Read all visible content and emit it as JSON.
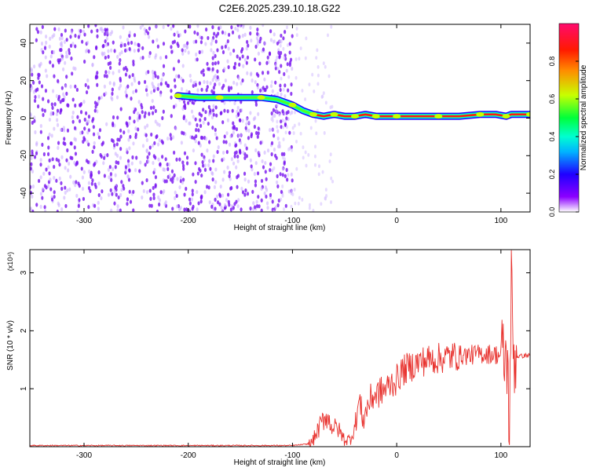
{
  "title": "C2E6.2025.239.10.18.G22",
  "chart_data": [
    {
      "type": "heatmap",
      "xlabel": "Height of straight line (km)",
      "ylabel": "Frequency (Hz)",
      "xlim": [
        -352,
        128
      ],
      "ylim": [
        -50,
        50
      ],
      "x_ticks": [
        -300,
        -200,
        -100,
        0,
        100
      ],
      "y_ticks": [
        -40,
        -20,
        0,
        20,
        40
      ],
      "colorbar": {
        "label": "Normalized spectral amplitude",
        "range": [
          0,
          1
        ],
        "ticks": [
          "0.0",
          "0.2",
          "0.4",
          "0.6",
          "0.8"
        ]
      },
      "frequency_track": {
        "x": [
          -210,
          -190,
          -170,
          -150,
          -130,
          -115,
          -100,
          -90,
          -80,
          -70,
          -60,
          -50,
          -40,
          -30,
          -20,
          -10,
          0,
          20,
          40,
          60,
          80,
          95,
          105,
          110,
          128
        ],
        "y": [
          12,
          11,
          11,
          11,
          11,
          10,
          7,
          4,
          2,
          1,
          2,
          1,
          1,
          2,
          1,
          1,
          1,
          1,
          1,
          1,
          2,
          2,
          1,
          2,
          2
        ]
      },
      "noise_region_x": [
        -352,
        -100
      ]
    },
    {
      "type": "line",
      "xlabel": "Height of straight line (km)",
      "ylabel": "SNR (10 * v/v)",
      "y_multiplier": "(x10⁴)",
      "xlim": [
        -352,
        128
      ],
      "ylim": [
        0,
        3.4
      ],
      "x_ticks": [
        -300,
        -200,
        -100,
        0,
        100
      ],
      "y_ticks": [
        1,
        2,
        3
      ],
      "color": "#e8322e",
      "series": [
        {
          "x": [
            -352,
            -300,
            -250,
            -200,
            -150,
            -120,
            -100,
            -82,
            -75,
            -68,
            -62,
            -56,
            -50,
            -45,
            -40,
            -36,
            -32,
            -28,
            -24,
            -20,
            -15,
            -10,
            -5,
            0,
            5,
            10,
            20,
            30,
            40,
            50,
            60,
            70,
            80,
            90,
            100,
            103,
            106,
            108,
            110,
            112,
            128
          ],
          "y": [
            0.02,
            0.02,
            0.02,
            0.02,
            0.02,
            0.02,
            0.02,
            0.05,
            0.3,
            0.55,
            0.35,
            0.3,
            0.12,
            0.12,
            0.35,
            0.8,
            0.45,
            0.7,
            0.85,
            0.9,
            0.95,
            1.0,
            1.1,
            1.15,
            1.3,
            1.35,
            1.45,
            1.5,
            1.52,
            1.55,
            1.58,
            1.58,
            1.6,
            1.6,
            1.58,
            1.5,
            1.55,
            0.3,
            2.8,
            1.55,
            1.58
          ]
        }
      ]
    }
  ]
}
